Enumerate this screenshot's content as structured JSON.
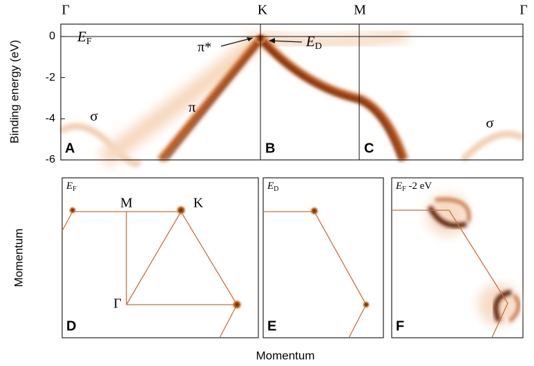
{
  "top_labels": [
    "Γ",
    "K",
    "M",
    "Γ"
  ],
  "y_axis": {
    "label": "Binding energy (eV)",
    "ylim": [
      -6,
      0.6
    ],
    "yticks": [
      0,
      -2,
      -4,
      -6
    ]
  },
  "annotations": {
    "ef": {
      "main": "E",
      "sub": "F"
    },
    "pi_star": "π*",
    "ed": {
      "main": "E",
      "sub": "D"
    },
    "sigma_left": "σ",
    "pi": "π",
    "sigma_right": "σ"
  },
  "panels": [
    {
      "letter": "A"
    },
    {
      "letter": "B"
    },
    {
      "letter": "C"
    },
    {
      "letter": "D",
      "energy": {
        "main": "E",
        "sub": "F"
      },
      "points": [
        "M",
        "K",
        "Γ"
      ]
    },
    {
      "letter": "E",
      "energy": {
        "main": "E",
        "sub": "D"
      }
    },
    {
      "letter": "F",
      "energy": {
        "main": "E",
        "sub": "F",
        "rest": " -2 eV"
      }
    }
  ],
  "bottom_y_label": "Momentum",
  "x_label": "Momentum"
}
